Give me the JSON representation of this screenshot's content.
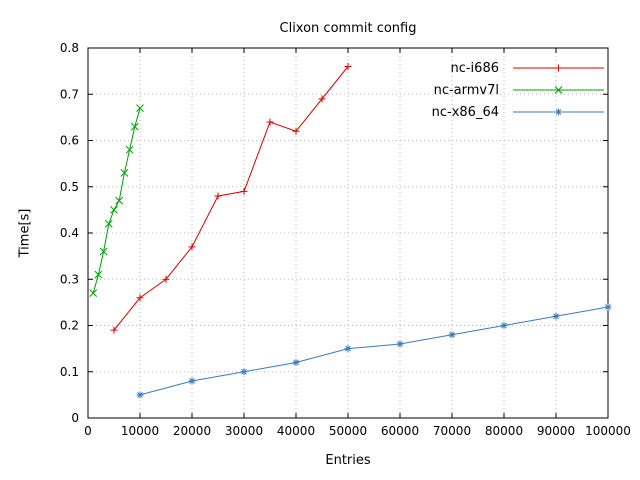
{
  "chart_data": {
    "type": "line",
    "title": "Clixon commit config",
    "xlabel": "Entries",
    "ylabel": "Time[s]",
    "xlim": [
      0,
      100000
    ],
    "ylim": [
      0,
      0.8
    ],
    "xticks": [
      0,
      10000,
      20000,
      30000,
      40000,
      50000,
      60000,
      70000,
      80000,
      90000,
      100000
    ],
    "yticks": [
      0,
      0.1,
      0.2,
      0.3,
      0.4,
      0.5,
      0.6,
      0.7,
      0.8
    ],
    "grid": true,
    "legend_position": "top-right",
    "series": [
      {
        "name": "nc-i686",
        "color": "#e00000",
        "marker": "plus",
        "x": [
          5000,
          10000,
          15000,
          20000,
          25000,
          30000,
          35000,
          40000,
          45000,
          50000
        ],
        "y": [
          0.19,
          0.26,
          0.3,
          0.37,
          0.48,
          0.49,
          0.64,
          0.62,
          0.69,
          0.76
        ]
      },
      {
        "name": "nc-armv7l",
        "color": "#00a000",
        "marker": "cross",
        "x": [
          1000,
          2000,
          3000,
          4000,
          5000,
          6000,
          7000,
          8000,
          9000,
          10000
        ],
        "y": [
          0.27,
          0.31,
          0.36,
          0.42,
          0.45,
          0.47,
          0.53,
          0.58,
          0.63,
          0.67
        ]
      },
      {
        "name": "nc-x86_64",
        "color": "#3a7abf",
        "marker": "star",
        "x": [
          10000,
          20000,
          30000,
          40000,
          50000,
          60000,
          70000,
          80000,
          90000,
          100000
        ],
        "y": [
          0.05,
          0.08,
          0.1,
          0.12,
          0.15,
          0.16,
          0.18,
          0.2,
          0.22,
          0.24
        ]
      }
    ]
  }
}
